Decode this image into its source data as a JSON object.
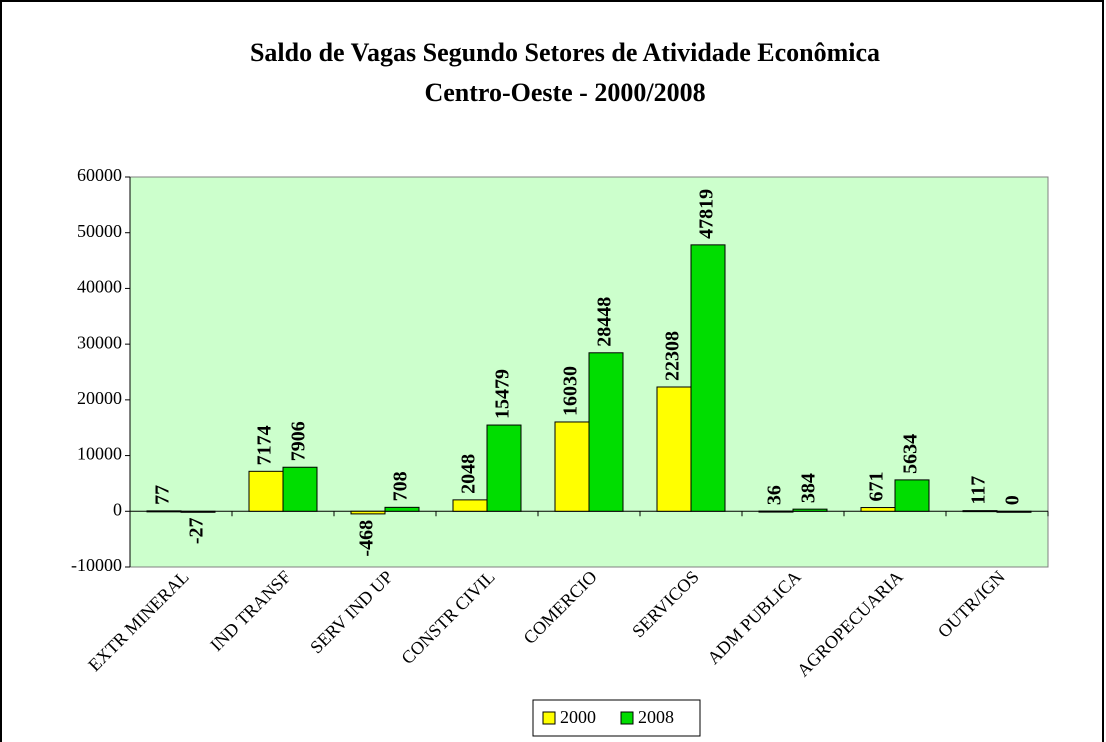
{
  "chart_data": {
    "type": "bar",
    "title": "Saldo de Vagas Segundo Setores de Atividade Econômica",
    "subtitle": "Centro-Oeste - 2000/2008",
    "categories": [
      "EXTR MINERAL",
      "IND TRANSF",
      "SERV IND UP",
      "CONSTR CIVIL",
      "COMERCIO",
      "SERVICOS",
      "ADM PUBLICA",
      "AGROPECUARIA",
      "OUTR/IGN"
    ],
    "series": [
      {
        "name": "2000",
        "color": "#ffff00",
        "values": [
          77,
          7174,
          -468,
          2048,
          16030,
          22308,
          36,
          671,
          117
        ]
      },
      {
        "name": "2008",
        "color": "#00dd00",
        "values": [
          -27,
          7906,
          708,
          15479,
          28448,
          47819,
          384,
          5634,
          0
        ]
      }
    ],
    "ylim": [
      -10000,
      60000
    ],
    "yticks": [
      -10000,
      0,
      10000,
      20000,
      30000,
      40000,
      50000,
      60000
    ],
    "legend": "bottom",
    "plot_background": "#ccffcc"
  }
}
